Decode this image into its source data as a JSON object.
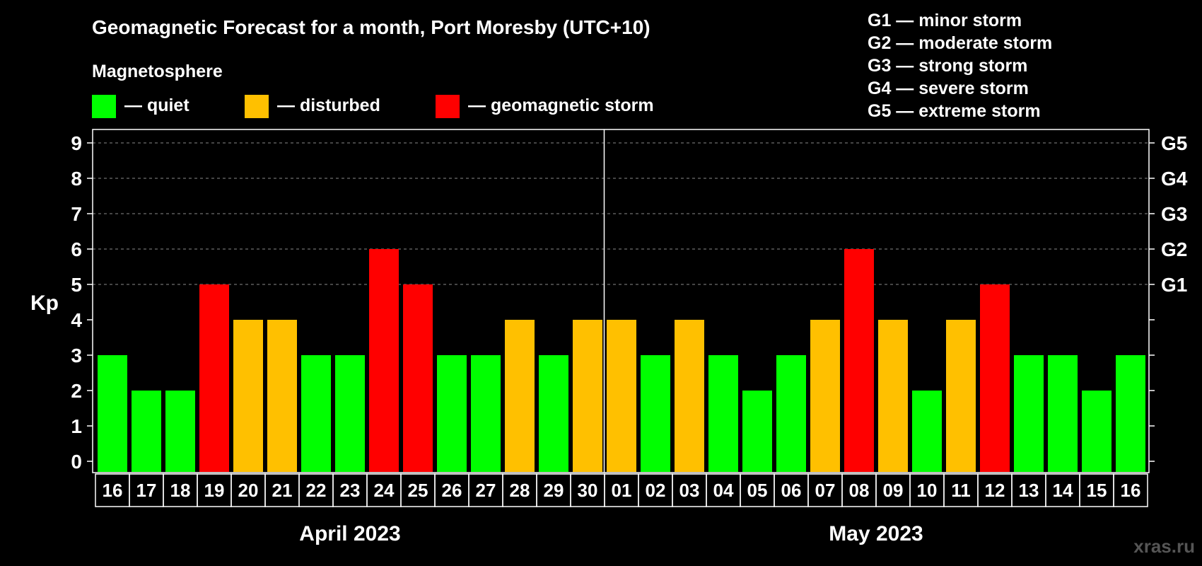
{
  "chart_data": {
    "type": "bar",
    "title": "Geomagnetic Forecast for a month, Port Moresby (UTC+10)",
    "legend_title": "Magnetosphere",
    "legend": [
      {
        "key": "quiet",
        "label": "— quiet",
        "color": "#00ff00"
      },
      {
        "key": "disturbed",
        "label": "— disturbed",
        "color": "#ffc000"
      },
      {
        "key": "storm",
        "label": "— geomagnetic storm",
        "color": "#ff0000"
      }
    ],
    "storm_scale": [
      "G1 — minor storm",
      "G2 — moderate storm",
      "G3 — strong storm",
      "G4 — severe storm",
      "G5 — extreme storm"
    ],
    "ylabel": "Kp",
    "ylim": [
      0,
      9
    ],
    "yticks": [
      0,
      1,
      2,
      3,
      4,
      5,
      6,
      7,
      8,
      9
    ],
    "g_levels": [
      {
        "label": "G1",
        "kp": 5
      },
      {
        "label": "G2",
        "kp": 6
      },
      {
        "label": "G3",
        "kp": 7
      },
      {
        "label": "G4",
        "kp": 8
      },
      {
        "label": "G5",
        "kp": 9
      }
    ],
    "categories": [
      "16",
      "17",
      "18",
      "19",
      "20",
      "21",
      "22",
      "23",
      "24",
      "25",
      "26",
      "27",
      "28",
      "29",
      "30",
      "01",
      "02",
      "03",
      "04",
      "05",
      "06",
      "07",
      "08",
      "09",
      "10",
      "11",
      "12",
      "13",
      "14",
      "15",
      "16"
    ],
    "values": [
      3,
      2,
      2,
      5,
      4,
      4,
      3,
      3,
      6,
      5,
      3,
      3,
      4,
      3,
      4,
      4,
      3,
      4,
      3,
      2,
      3,
      4,
      6,
      4,
      2,
      4,
      5,
      3,
      3,
      2,
      3
    ],
    "months": [
      {
        "label": "April 2023",
        "start": 0,
        "end": 14
      },
      {
        "label": "May 2023",
        "start": 15,
        "end": 30
      }
    ],
    "watermark": "xras.ru"
  }
}
